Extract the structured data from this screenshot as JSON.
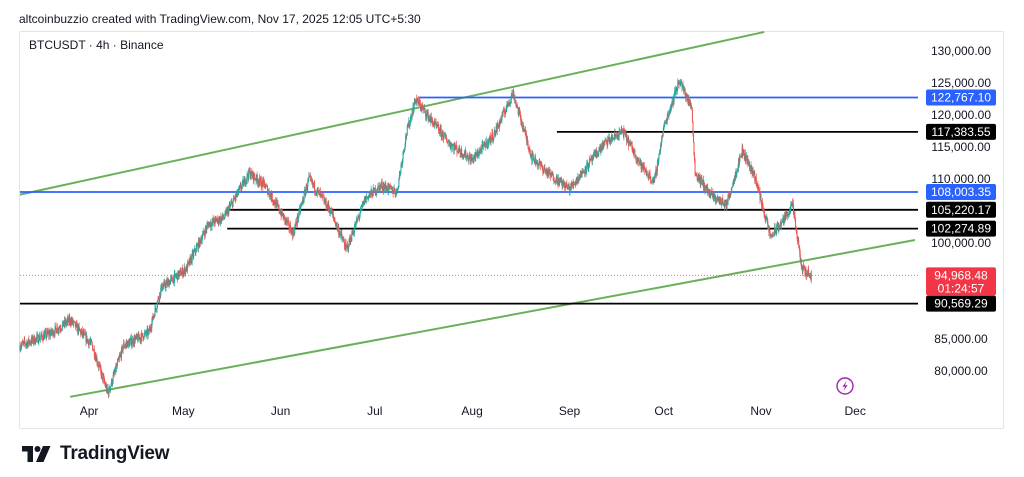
{
  "header": {
    "text": "altcoinbuzzio created with TradingView.com, Nov 17, 2025 12:05 UTC+5:30"
  },
  "brand": {
    "name": "TradingView"
  },
  "colors": {
    "channel": "#6aaf5a",
    "resistance_blue": "#2962ff",
    "level": "#000000",
    "up": "#26a69a",
    "down": "#ef5350",
    "current_price_bg": "#f23645"
  },
  "icons": {
    "lightning": "lightning-icon",
    "logo": "tradingview-logo-icon"
  },
  "chart_data": {
    "type": "candlestick",
    "symbol_label": "BTCUSDT · 4h · Binance",
    "x_ticks": [
      "Apr",
      "May",
      "Jun",
      "Jul",
      "Aug",
      "Sep",
      "Oct",
      "Nov",
      "Dec"
    ],
    "y_ticks": [
      80000,
      85000,
      100000,
      105000,
      110000,
      115000,
      120000,
      125000,
      130000
    ],
    "y_tick_labels": [
      "80,000.00",
      "85,000.00",
      "100,000.00",
      "105,000.00",
      "110,000.00",
      "115,000.00",
      "120,000.00",
      "125,000.00",
      "130,000.00"
    ],
    "ylim": [
      75500,
      133000
    ],
    "current_price": {
      "label": "94,968.48",
      "value": 94968.48,
      "countdown": "01:24:57"
    },
    "horizontal_levels": [
      {
        "label": "122,767.10",
        "value": 122767.1,
        "color": "blue",
        "from": "Jul"
      },
      {
        "label": "117,383.55",
        "value": 117383.55,
        "color": "black",
        "from": "Aug-end"
      },
      {
        "label": "108,003.35",
        "value": 108003.35,
        "color": "blue",
        "from": "start"
      },
      {
        "label": "105,220.17",
        "value": 105220.17,
        "color": "black",
        "from": "May"
      },
      {
        "label": "102,274.89",
        "value": 102274.89,
        "color": "black",
        "from": "May"
      },
      {
        "label": "90,569.29",
        "value": 90569.29,
        "color": "black",
        "from": "start"
      }
    ],
    "channel": {
      "upper": [
        [
          "Mar-10",
          107600
        ],
        [
          "Nov-2",
          133000
        ]
      ],
      "lower": [
        [
          "Mar-26",
          76000
        ],
        [
          "Dec-20",
          100500
        ]
      ]
    },
    "price_path": [
      [
        "Mar-10",
        84000
      ],
      [
        "Mar-20",
        86000
      ],
      [
        "Mar-26",
        88000
      ],
      [
        "Apr-02",
        84000
      ],
      [
        "Apr-07",
        76500
      ],
      [
        "Apr-12",
        84000
      ],
      [
        "Apr-20",
        86000
      ],
      [
        "Apr-24",
        93000
      ],
      [
        "May-02",
        96000
      ],
      [
        "May-09",
        103000
      ],
      [
        "May-14",
        104000
      ],
      [
        "May-22",
        111000
      ],
      [
        "May-27",
        109000
      ],
      [
        "Jun-05",
        101500
      ],
      [
        "Jun-10",
        110000
      ],
      [
        "Jun-17",
        105000
      ],
      [
        "Jun-22",
        99000
      ],
      [
        "Jun-28",
        107000
      ],
      [
        "Jul-03",
        109000
      ],
      [
        "Jul-08",
        108000
      ],
      [
        "Jul-11",
        117000
      ],
      [
        "Jul-14",
        122500
      ],
      [
        "Jul-20",
        118500
      ],
      [
        "Jul-25",
        115500
      ],
      [
        "Aug-01",
        113000
      ],
      [
        "Aug-08",
        117000
      ],
      [
        "Aug-14",
        123500
      ],
      [
        "Aug-20",
        113500
      ],
      [
        "Aug-25",
        111000
      ],
      [
        "Sep-01",
        108500
      ],
      [
        "Sep-05",
        111000
      ],
      [
        "Sep-12",
        115500
      ],
      [
        "Sep-18",
        117500
      ],
      [
        "Sep-24",
        112000
      ],
      [
        "Sep-28",
        109500
      ],
      [
        "Oct-01",
        118000
      ],
      [
        "Oct-06",
        125500
      ],
      [
        "Oct-10",
        121000
      ],
      [
        "Oct-11",
        111000
      ],
      [
        "Oct-16",
        107500
      ],
      [
        "Oct-21",
        106000
      ],
      [
        "Oct-26",
        114500
      ],
      [
        "Oct-30",
        110500
      ],
      [
        "Nov-04",
        101000
      ],
      [
        "Nov-08",
        103500
      ],
      [
        "Nov-11",
        106000
      ],
      [
        "Nov-14",
        96000
      ],
      [
        "Nov-17",
        94968
      ]
    ]
  }
}
